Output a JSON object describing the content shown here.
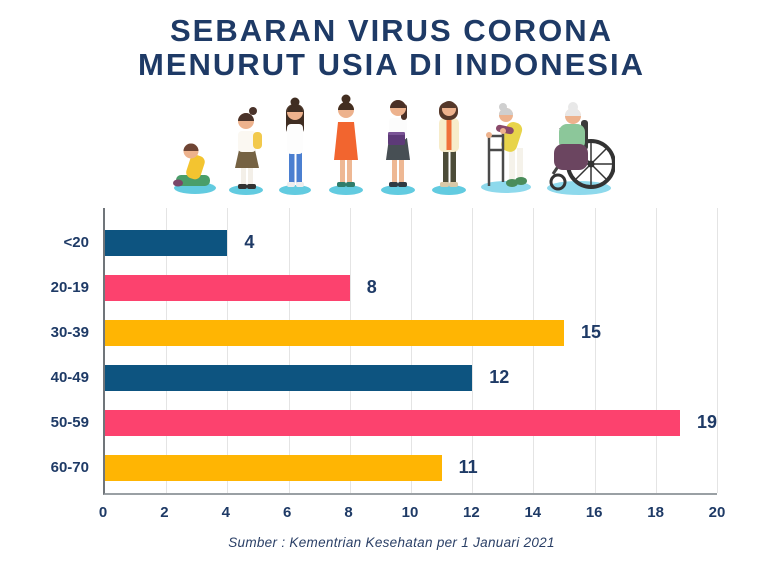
{
  "header": {
    "title_line1": "SEBARAN VIRUS CORONA",
    "title_line2": "MENURUT USIA DI INDONESIA",
    "title_color": "#1e3a66"
  },
  "illustration": {
    "figures": [
      "child-sitting",
      "schoolgirl-with-backpack",
      "teenager",
      "young-woman-orange-dress",
      "woman-holding-folder",
      "woman-in-jacket",
      "elderly-woman-with-walker",
      "elderly-woman-in-wheelchair"
    ],
    "shadow_color": "#62cbe0"
  },
  "chart_data": {
    "type": "bar",
    "orientation": "horizontal",
    "title": "Sebaran Virus Corona Menurut Usia di Indonesia",
    "categories": [
      "<20",
      "20-19",
      "30-39",
      "40-49",
      "50-59",
      "60-70"
    ],
    "values": [
      4,
      8,
      15,
      12,
      19,
      11
    ],
    "bar_colors": [
      "#0d5480",
      "#fc426e",
      "#ffb503",
      "#0d5480",
      "#fc426e",
      "#ffb503"
    ],
    "xlim": [
      0,
      20
    ],
    "xticks": [
      0,
      2,
      4,
      6,
      8,
      10,
      12,
      14,
      16,
      18,
      20
    ],
    "grid": true,
    "gridline_color": "#e4e4e4",
    "axis_color": "#9aa0a4",
    "label_color": "#1e3a66",
    "legend": "none"
  },
  "footer": {
    "source": "Sumber : Kementrian Kesehatan per 1 Januari 2021"
  }
}
